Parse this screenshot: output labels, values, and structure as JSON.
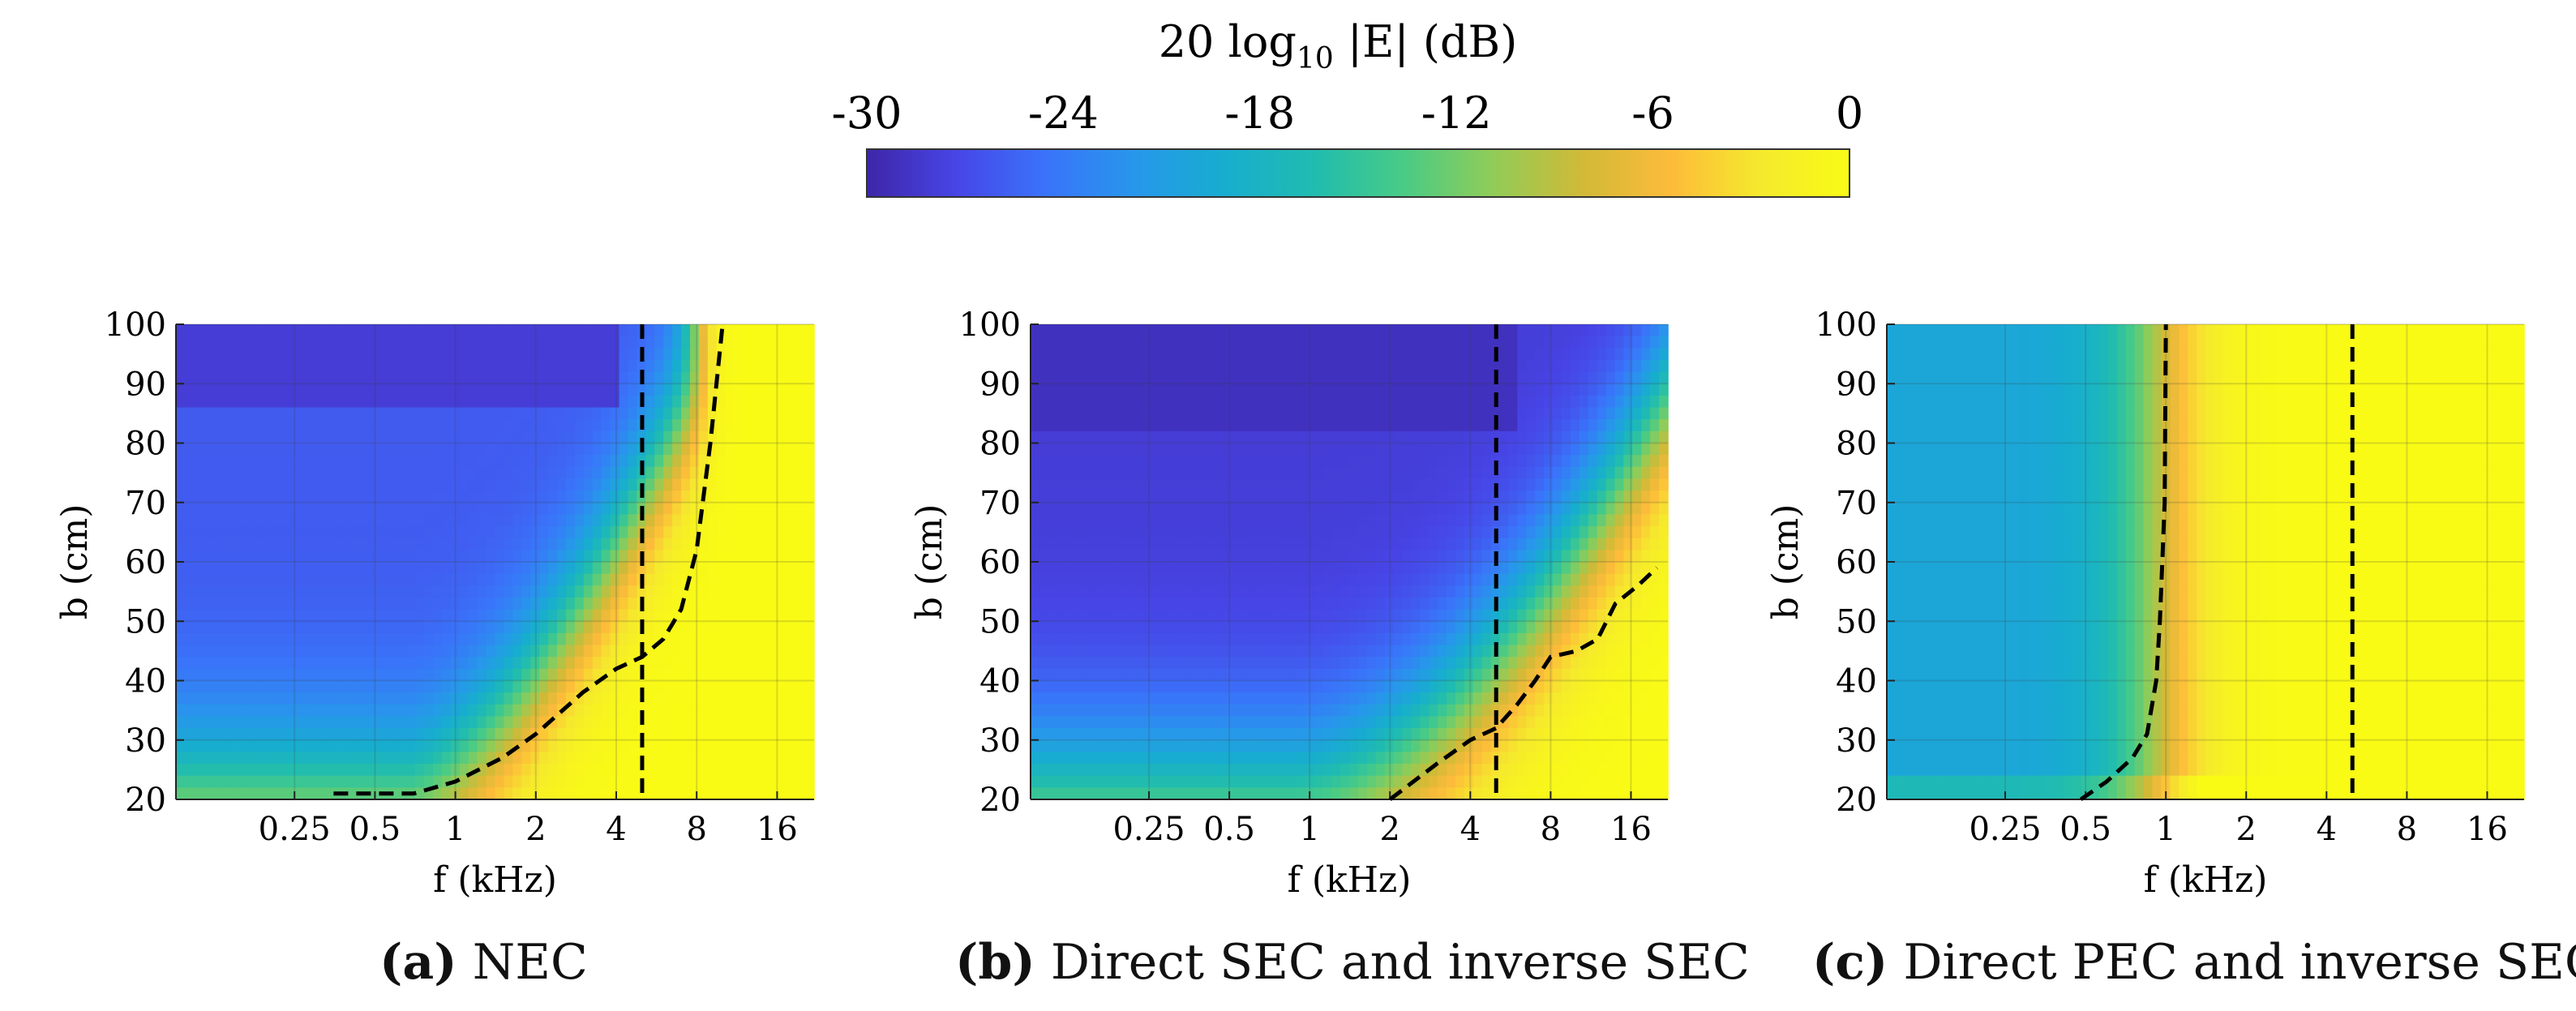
{
  "colorbar": {
    "title": "20 log10 |E| (dB)",
    "title_main": "20 log",
    "title_sub": "10",
    "title_rest": " |E| (dB)",
    "ticks": [
      -30,
      -24,
      -18,
      -12,
      -6,
      0
    ],
    "tick_labels": [
      "-30",
      "-24",
      "-18",
      "-12",
      "-6",
      "0"
    ],
    "range": [
      -30,
      0
    ],
    "colormap": "parula",
    "colors": [
      "#3e26a8",
      "#4745e6",
      "#3a73fa",
      "#2797eb",
      "#17adcf",
      "#20bcb0",
      "#48cb86",
      "#90cc58",
      "#d0ba37",
      "#fdbb3a",
      "#f5e92d",
      "#f9fb15"
    ]
  },
  "captions": [
    {
      "label": "(a)",
      "text": "NEC"
    },
    {
      "label": "(b)",
      "text": "Direct SEC and inverse SEC"
    },
    {
      "label": "(c)",
      "text": "Direct PEC and inverse SEC"
    }
  ],
  "chart_data": [
    {
      "type": "heatmap",
      "title": "",
      "xlabel": "f (kHz)",
      "ylabel": "b (cm)",
      "x_scale": "log2",
      "xlim": [
        0.09,
        22
      ],
      "ylim": [
        20,
        100
      ],
      "x_ticks": [
        0.25,
        0.5,
        1,
        2,
        4,
        8,
        16
      ],
      "x_tick_labels": [
        "0.25",
        "0.5",
        "1",
        "2",
        "4",
        "8",
        "16"
      ],
      "y_ticks": [
        20,
        30,
        40,
        50,
        60,
        70,
        80,
        90,
        100
      ],
      "y_tick_labels": [
        "20",
        "30",
        "40",
        "50",
        "60",
        "70",
        "80",
        "90",
        "100"
      ],
      "grid": true,
      "vertical_line_f": 5,
      "contour_points": [
        [
          0.35,
          21
        ],
        [
          0.5,
          21
        ],
        [
          0.7,
          21
        ],
        [
          1,
          23
        ],
        [
          1.5,
          27
        ],
        [
          2,
          31
        ],
        [
          3,
          38
        ],
        [
          4,
          42
        ],
        [
          5,
          44
        ],
        [
          6,
          47
        ],
        [
          7,
          52
        ],
        [
          8,
          62
        ],
        [
          9,
          80
        ],
        [
          10,
          100
        ]
      ],
      "field_model": "nec"
    },
    {
      "type": "heatmap",
      "title": "",
      "xlabel": "f (kHz)",
      "ylabel": "b (cm)",
      "x_scale": "log2",
      "xlim": [
        0.09,
        22
      ],
      "ylim": [
        20,
        100
      ],
      "x_ticks": [
        0.25,
        0.5,
        1,
        2,
        4,
        8,
        16
      ],
      "x_tick_labels": [
        "0.25",
        "0.5",
        "1",
        "2",
        "4",
        "8",
        "16"
      ],
      "y_ticks": [
        20,
        30,
        40,
        50,
        60,
        70,
        80,
        90,
        100
      ],
      "y_tick_labels": [
        "20",
        "30",
        "40",
        "50",
        "60",
        "70",
        "80",
        "90",
        "100"
      ],
      "grid": true,
      "vertical_line_f": 5,
      "contour_points": [
        [
          2,
          20
        ],
        [
          3,
          26
        ],
        [
          4,
          30
        ],
        [
          5,
          32
        ],
        [
          6,
          36
        ],
        [
          7,
          40
        ],
        [
          8,
          44
        ],
        [
          10,
          45
        ],
        [
          12,
          47
        ],
        [
          14,
          53
        ],
        [
          17,
          56
        ],
        [
          20,
          59
        ]
      ],
      "field_model": "sec"
    },
    {
      "type": "heatmap",
      "title": "",
      "xlabel": "f (kHz)",
      "ylabel": "b (cm)",
      "x_scale": "log2",
      "xlim": [
        0.09,
        22
      ],
      "ylim": [
        20,
        100
      ],
      "x_ticks": [
        0.25,
        0.5,
        1,
        2,
        4,
        8,
        16
      ],
      "x_tick_labels": [
        "0.25",
        "0.5",
        "1",
        "2",
        "4",
        "8",
        "16"
      ],
      "y_ticks": [
        20,
        30,
        40,
        50,
        60,
        70,
        80,
        90,
        100
      ],
      "y_tick_labels": [
        "20",
        "30",
        "40",
        "50",
        "60",
        "70",
        "80",
        "90",
        "100"
      ],
      "grid": true,
      "vertical_line_f": 5,
      "contour_points": [
        [
          0.48,
          20
        ],
        [
          0.6,
          23
        ],
        [
          0.75,
          27
        ],
        [
          0.85,
          31
        ],
        [
          0.92,
          40
        ],
        [
          0.95,
          50
        ],
        [
          0.97,
          60
        ],
        [
          0.99,
          70
        ],
        [
          1,
          100
        ]
      ],
      "field_model": "pec"
    }
  ]
}
